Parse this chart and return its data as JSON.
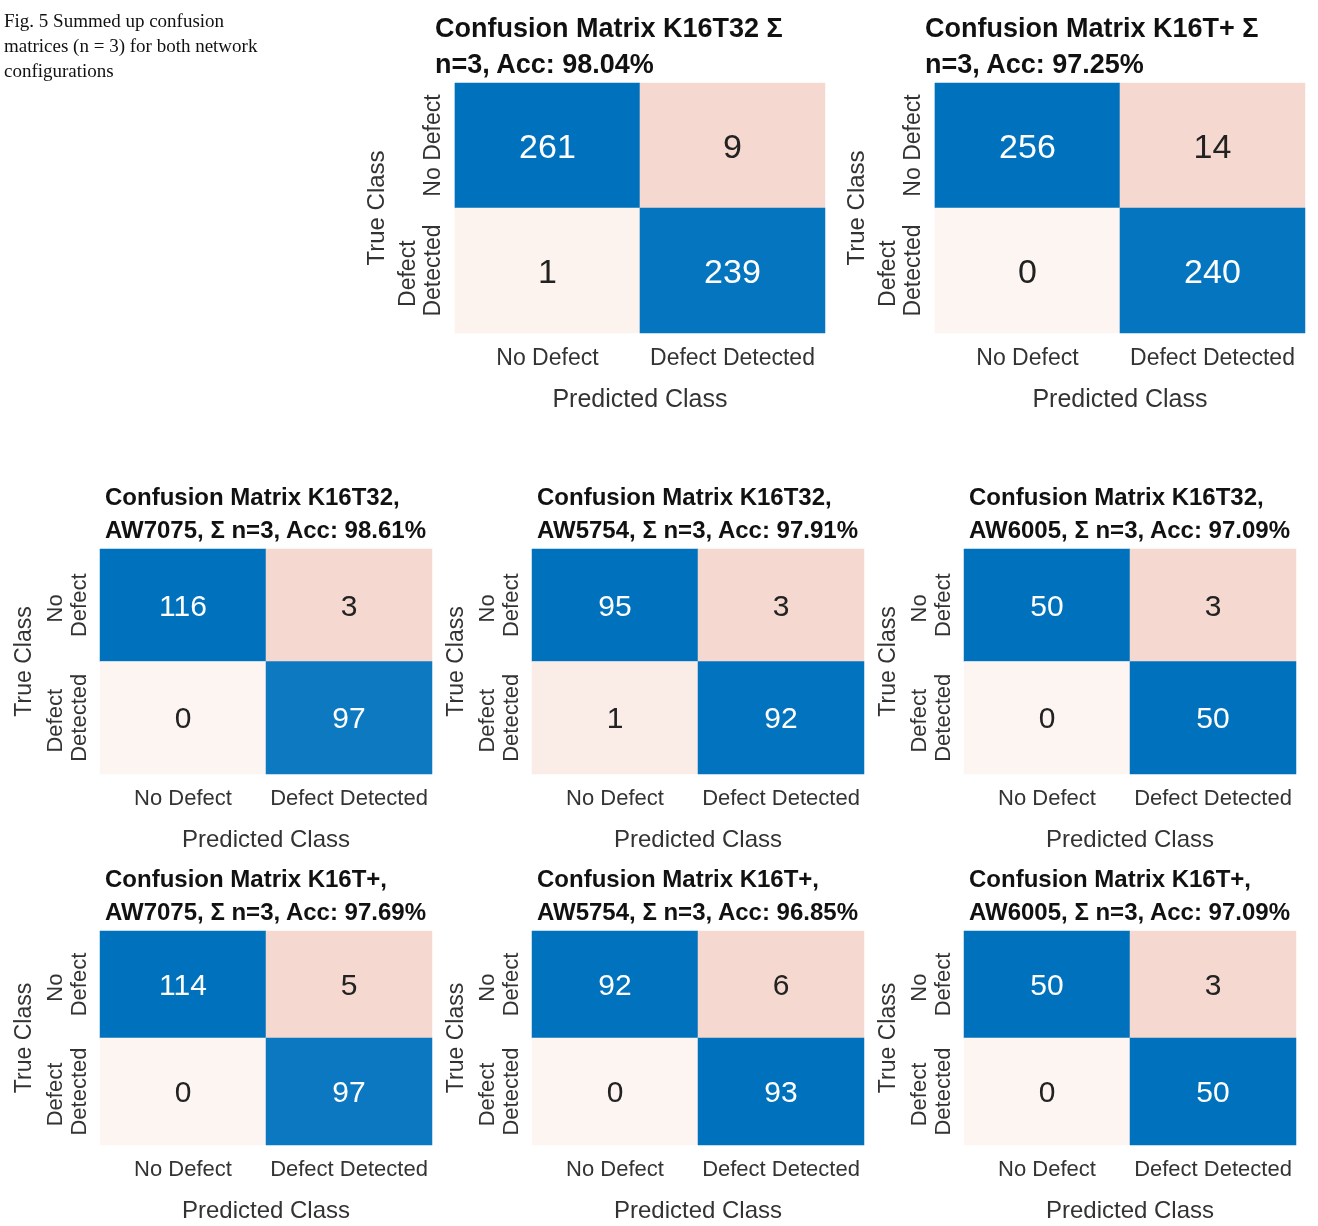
{
  "chart_data": [
    {
      "type": "heatmap",
      "title": "Confusion Matrix K16T32 Σ n=3, Acc: 98.04%",
      "xlabel": "Predicted Class",
      "ylabel": "True Class",
      "categories": [
        "No Defect",
        "Defect Detected"
      ],
      "y_categories": [
        "No Defect",
        "Defect Detected"
      ],
      "cells": [
        [
          261,
          9
        ],
        [
          1,
          239
        ]
      ],
      "data_labels": true,
      "annotations": [
        "Fig. 5 Summed up confusion matrices (n = 3) for both network configurations"
      ]
    },
    {
      "type": "heatmap",
      "title": "Confusion Matrix K16T+ Σ n=3, Acc: 97.25%",
      "xlabel": "Predicted Class",
      "ylabel": "True Class",
      "categories": [
        "No Defect",
        "Defect Detected"
      ],
      "y_categories": [
        "No Defect",
        "Defect Detected"
      ],
      "cells": [
        [
          256,
          14
        ],
        [
          0,
          240
        ]
      ],
      "data_labels": true
    },
    {
      "type": "heatmap",
      "title": "Confusion Matrix K16T32, AW7075, Σ n=3, Acc: 98.61%",
      "xlabel": "Predicted Class",
      "ylabel": "True Class",
      "categories": [
        "No Defect",
        "Defect Detected"
      ],
      "y_categories": [
        "No Defect",
        "Defect Detected"
      ],
      "cells": [
        [
          116,
          3
        ],
        [
          0,
          97
        ]
      ],
      "data_labels": true
    },
    {
      "type": "heatmap",
      "title": "Confusion Matrix K16T32, AW5754, Σ n=3, Acc: 97.91%",
      "xlabel": "Predicted Class",
      "ylabel": "True Class",
      "categories": [
        "No Defect",
        "Defect Detected"
      ],
      "y_categories": [
        "No Defect",
        "Defect Detected"
      ],
      "cells": [
        [
          95,
          3
        ],
        [
          1,
          92
        ]
      ],
      "data_labels": true
    },
    {
      "type": "heatmap",
      "title": "Confusion Matrix K16T32, AW6005, Σ n=3, Acc: 97.09%",
      "xlabel": "Predicted Class",
      "ylabel": "True Class",
      "categories": [
        "No Defect",
        "Defect Detected"
      ],
      "y_categories": [
        "No Defect",
        "Defect Detected"
      ],
      "cells": [
        [
          50,
          3
        ],
        [
          0,
          50
        ]
      ],
      "data_labels": true
    },
    {
      "type": "heatmap",
      "title": "Confusion Matrix K16T+, AW7075, Σ n=3, Acc: 97.69%",
      "xlabel": "Predicted Class",
      "ylabel": "True Class",
      "categories": [
        "No Defect",
        "Defect Detected"
      ],
      "y_categories": [
        "No Defect",
        "Defect Detected"
      ],
      "cells": [
        [
          114,
          5
        ],
        [
          0,
          97
        ]
      ],
      "data_labels": true
    },
    {
      "type": "heatmap",
      "title": "Confusion Matrix K16T+, AW5754, Σ n=3, Acc: 96.85%",
      "xlabel": "Predicted Class",
      "ylabel": "True Class",
      "categories": [
        "No Defect",
        "Defect Detected"
      ],
      "y_categories": [
        "No Defect",
        "Defect Detected"
      ],
      "cells": [
        [
          92,
          6
        ],
        [
          0,
          93
        ]
      ],
      "data_labels": true
    },
    {
      "type": "heatmap",
      "title": "Confusion Matrix K16T+, AW6005, Σ n=3, Acc: 97.09%",
      "xlabel": "Predicted Class",
      "ylabel": "True Class",
      "categories": [
        "No Defect",
        "Defect Detected"
      ],
      "y_categories": [
        "No Defect",
        "Defect Detected"
      ],
      "cells": [
        [
          50,
          3
        ],
        [
          0,
          50
        ]
      ],
      "data_labels": true
    }
  ]
}
